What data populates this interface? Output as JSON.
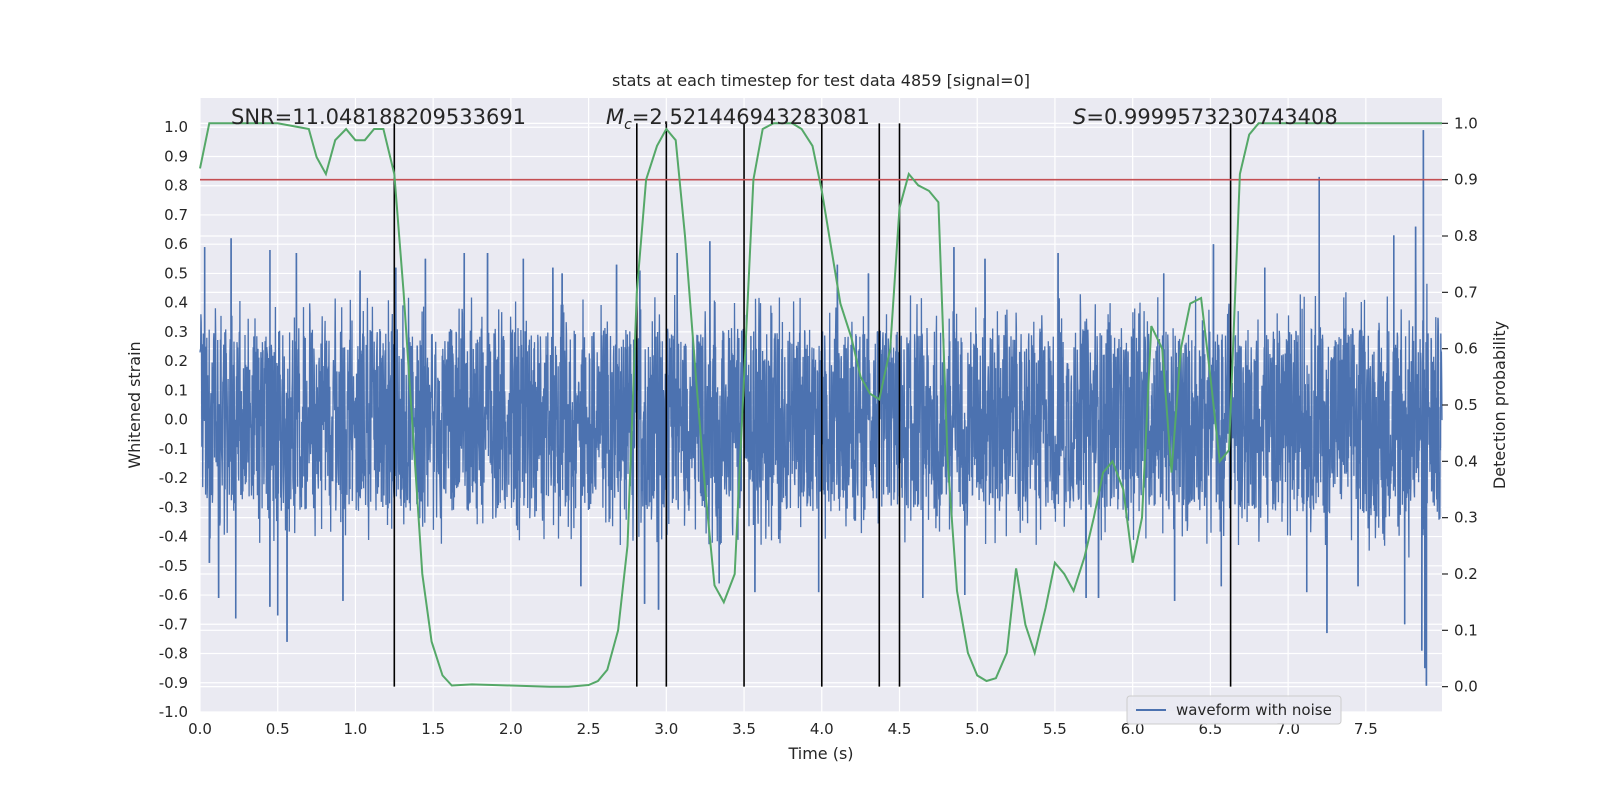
{
  "chart_data": {
    "type": "line",
    "title": "stats at each timestep for test data 4859 [signal=0]",
    "xlabel": "Time (s)",
    "ylabel": "Whitened strain",
    "y2label": "Detection probability",
    "xlim": [
      0,
      7.99
    ],
    "ylim": [
      -1.0,
      1.1
    ],
    "y2lim": [
      -0.045,
      1.045
    ],
    "xticks": [
      "0.0",
      "0.5",
      "1.0",
      "1.5",
      "2.0",
      "2.5",
      "3.0",
      "3.5",
      "4.0",
      "4.5",
      "5.0",
      "5.5",
      "6.0",
      "6.5",
      "7.0",
      "7.5"
    ],
    "yticks": [
      "-1.0",
      "-0.9",
      "-0.8",
      "-0.7",
      "-0.6",
      "-0.5",
      "-0.4",
      "-0.3",
      "-0.2",
      "-0.1",
      "0.0",
      "0.1",
      "0.2",
      "0.3",
      "0.4",
      "0.5",
      "0.6",
      "0.7",
      "0.8",
      "0.9",
      "1.0"
    ],
    "y2ticks": [
      "0.0",
      "0.1",
      "0.2",
      "0.3",
      "0.4",
      "0.5",
      "0.6",
      "0.7",
      "0.8",
      "0.9",
      "1.0"
    ],
    "grid": true,
    "annotations": {
      "snr": "SNR=11.048188209533691",
      "mc_symbol": "M",
      "mc_sub": "c",
      "mc_value": "=2.521446943283081",
      "s_symbol": "S",
      "s_value": "=0.9999573230743408"
    },
    "series": [
      {
        "name": "waveform with noise",
        "axis": "left",
        "color": "#4c72b0",
        "envelope_x": [
          0.0,
          0.5,
          1.0,
          1.5,
          2.0,
          2.5,
          3.0,
          3.5,
          4.0,
          4.5,
          5.0,
          5.5,
          6.0,
          6.5,
          7.0,
          7.5,
          7.99
        ],
        "envelope_typical": [
          0.33,
          0.33,
          0.33,
          0.33,
          0.33,
          0.33,
          0.33,
          0.33,
          0.33,
          0.33,
          0.33,
          0.33,
          0.33,
          0.33,
          0.33,
          0.35,
          0.38
        ],
        "peaks": [
          {
            "x": 0.03,
            "y": 0.59
          },
          {
            "x": 0.06,
            "y": -0.49
          },
          {
            "x": 0.12,
            "y": -0.61
          },
          {
            "x": 0.2,
            "y": 0.62
          },
          {
            "x": 0.23,
            "y": -0.68
          },
          {
            "x": 0.45,
            "y": 0.58
          },
          {
            "x": 0.45,
            "y": -0.64
          },
          {
            "x": 0.5,
            "y": -0.67
          },
          {
            "x": 0.56,
            "y": -0.76
          },
          {
            "x": 0.62,
            "y": 0.57
          },
          {
            "x": 0.92,
            "y": -0.62
          },
          {
            "x": 1.03,
            "y": 0.51
          },
          {
            "x": 1.26,
            "y": 0.52
          },
          {
            "x": 1.45,
            "y": 0.55
          },
          {
            "x": 1.7,
            "y": 0.57
          },
          {
            "x": 1.85,
            "y": 0.57
          },
          {
            "x": 2.08,
            "y": 0.55
          },
          {
            "x": 2.27,
            "y": 0.52
          },
          {
            "x": 2.33,
            "y": 0.5
          },
          {
            "x": 2.45,
            "y": -0.57
          },
          {
            "x": 2.68,
            "y": 0.53
          },
          {
            "x": 2.83,
            "y": 0.51
          },
          {
            "x": 2.86,
            "y": -0.63
          },
          {
            "x": 2.95,
            "y": -0.65
          },
          {
            "x": 3.07,
            "y": 0.57
          },
          {
            "x": 3.28,
            "y": 0.61
          },
          {
            "x": 3.34,
            "y": -0.56
          },
          {
            "x": 3.57,
            "y": -0.59
          },
          {
            "x": 3.98,
            "y": -0.59
          },
          {
            "x": 4.1,
            "y": 0.53
          },
          {
            "x": 4.3,
            "y": 0.5
          },
          {
            "x": 4.65,
            "y": -0.61
          },
          {
            "x": 4.85,
            "y": 0.59
          },
          {
            "x": 4.92,
            "y": -0.6
          },
          {
            "x": 5.05,
            "y": 0.55
          },
          {
            "x": 5.52,
            "y": 0.57
          },
          {
            "x": 5.7,
            "y": -0.61
          },
          {
            "x": 5.78,
            "y": -0.61
          },
          {
            "x": 6.2,
            "y": 0.5
          },
          {
            "x": 6.27,
            "y": -0.62
          },
          {
            "x": 6.52,
            "y": 0.6
          },
          {
            "x": 6.57,
            "y": -0.57
          },
          {
            "x": 6.85,
            "y": 0.52
          },
          {
            "x": 7.12,
            "y": -0.59
          },
          {
            "x": 7.2,
            "y": 0.83
          },
          {
            "x": 7.25,
            "y": -0.73
          },
          {
            "x": 7.45,
            "y": -0.57
          },
          {
            "x": 7.68,
            "y": 0.63
          },
          {
            "x": 7.75,
            "y": -0.7
          },
          {
            "x": 7.82,
            "y": 0.66
          },
          {
            "x": 7.86,
            "y": -0.79
          },
          {
            "x": 7.87,
            "y": 0.99
          },
          {
            "x": 7.88,
            "y": -0.85
          },
          {
            "x": 7.89,
            "y": -0.91
          }
        ]
      },
      {
        "name": "detection probability",
        "axis": "right",
        "color": "#55a868",
        "x": [
          0.0,
          0.06,
          0.12,
          0.25,
          0.5,
          0.7,
          0.75,
          0.81,
          0.87,
          0.94,
          1.0,
          1.06,
          1.12,
          1.18,
          1.25,
          1.31,
          1.37,
          1.43,
          1.49,
          1.56,
          1.62,
          1.75,
          2.0,
          2.25,
          2.37,
          2.5,
          2.56,
          2.62,
          2.69,
          2.75,
          2.81,
          2.87,
          2.94,
          3.0,
          3.06,
          3.12,
          3.19,
          3.25,
          3.31,
          3.37,
          3.44,
          3.5,
          3.56,
          3.62,
          3.69,
          3.75,
          3.81,
          3.87,
          3.94,
          4.0,
          4.06,
          4.12,
          4.19,
          4.25,
          4.31,
          4.37,
          4.44,
          4.5,
          4.56,
          4.62,
          4.69,
          4.75,
          4.81,
          4.87,
          4.94,
          5.0,
          5.06,
          5.12,
          5.19,
          5.25,
          5.31,
          5.37,
          5.44,
          5.5,
          5.56,
          5.62,
          5.69,
          5.75,
          5.81,
          5.87,
          5.94,
          6.0,
          6.06,
          6.12,
          6.19,
          6.25,
          6.31,
          6.37,
          6.44,
          6.5,
          6.56,
          6.62,
          6.69,
          6.75,
          6.81,
          6.87,
          7.0,
          7.99
        ],
        "y": [
          0.92,
          1.0,
          1.0,
          1.0,
          1.0,
          0.99,
          0.94,
          0.91,
          0.97,
          0.99,
          0.97,
          0.97,
          0.99,
          0.99,
          0.91,
          0.7,
          0.45,
          0.2,
          0.08,
          0.02,
          0.002,
          0.004,
          0.002,
          0.0,
          0.0,
          0.003,
          0.01,
          0.03,
          0.1,
          0.25,
          0.7,
          0.9,
          0.96,
          0.99,
          0.97,
          0.8,
          0.55,
          0.35,
          0.18,
          0.15,
          0.2,
          0.55,
          0.9,
          0.99,
          1.0,
          1.0,
          1.0,
          0.99,
          0.96,
          0.88,
          0.78,
          0.68,
          0.62,
          0.55,
          0.52,
          0.51,
          0.6,
          0.85,
          0.91,
          0.89,
          0.88,
          0.86,
          0.4,
          0.17,
          0.06,
          0.02,
          0.01,
          0.015,
          0.06,
          0.21,
          0.11,
          0.06,
          0.14,
          0.22,
          0.2,
          0.17,
          0.23,
          0.3,
          0.38,
          0.4,
          0.35,
          0.22,
          0.3,
          0.64,
          0.6,
          0.38,
          0.6,
          0.68,
          0.69,
          0.55,
          0.4,
          0.42,
          0.91,
          0.98,
          1.0,
          1.0,
          1.0,
          1.0
        ]
      }
    ],
    "threshold": {
      "axis": "right",
      "y": 0.9,
      "color": "#c44e52"
    },
    "vlines": {
      "x": [
        1.25,
        2.81,
        3.0,
        3.5,
        4.0,
        4.37,
        4.5,
        6.63
      ],
      "y2_range": [
        0.0,
        1.0
      ],
      "color": "#000000"
    },
    "legend": {
      "label": "waveform with noise",
      "position": "lower-right"
    }
  }
}
